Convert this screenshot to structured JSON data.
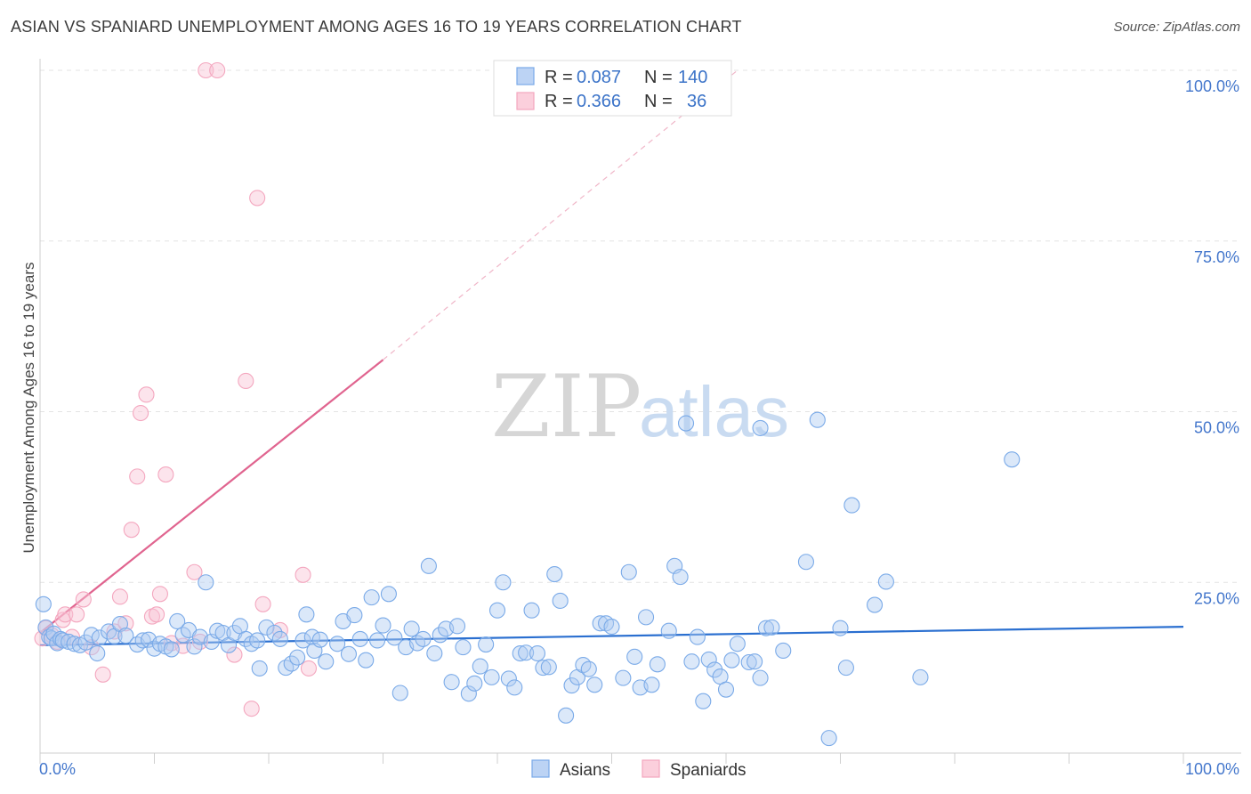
{
  "header": {
    "title": "ASIAN VS SPANIARD UNEMPLOYMENT AMONG AGES 16 TO 19 YEARS CORRELATION CHART",
    "source": "Source: ZipAtlas.com"
  },
  "watermark": {
    "zip": "ZIP",
    "atlas": "atlas"
  },
  "legend_top": [
    {
      "r_label": "R =",
      "r_value": "0.087",
      "n_label": "N =",
      "n_value": "140"
    },
    {
      "r_label": "R =",
      "r_value": "0.366",
      "n_label": "N =",
      "n_value": "36"
    }
  ],
  "legend_bottom": [
    "Asians",
    "Spaniards"
  ],
  "chart_data": {
    "type": "scatter",
    "title": "ASIAN VS SPANIARD UNEMPLOYMENT AMONG AGES 16 TO 19 YEARS CORRELATION CHART",
    "xlabel": "",
    "ylabel": "Unemployment Among Ages 16 to 19 years",
    "xlim": [
      0,
      100
    ],
    "ylim": [
      0,
      100
    ],
    "x_tick_labels": [
      "0.0%",
      "100.0%"
    ],
    "y_tick_labels": [
      "25.0%",
      "50.0%",
      "75.0%",
      "100.0%"
    ],
    "y_ticks": [
      25,
      50,
      75,
      100
    ],
    "grid": true,
    "legend_position": "top-center",
    "colors": {
      "asians": "#7aaae8",
      "spaniards": "#f4a7bf",
      "asians_line": "#2a6fd0",
      "spaniards_line": "#e0648f"
    },
    "series": [
      {
        "name": "Asians",
        "r": 0.087,
        "n": 140,
        "trend": {
          "x": [
            0,
            100
          ],
          "y": [
            15.8,
            18.5
          ]
        },
        "points": [
          [
            0.3,
            21.8
          ],
          [
            0.5,
            18.4
          ],
          [
            0.8,
            17.0
          ],
          [
            1.0,
            16.8
          ],
          [
            1.2,
            17.5
          ],
          [
            1.5,
            16.1
          ],
          [
            1.8,
            16.7
          ],
          [
            2.0,
            16.5
          ],
          [
            2.5,
            16.3
          ],
          [
            3.0,
            16.0
          ],
          [
            3.5,
            15.8
          ],
          [
            4.0,
            16.2
          ],
          [
            4.5,
            17.3
          ],
          [
            5.0,
            14.6
          ],
          [
            5.2,
            16.9
          ],
          [
            6.0,
            17.8
          ],
          [
            6.5,
            17.1
          ],
          [
            7.0,
            18.9
          ],
          [
            7.5,
            17.2
          ],
          [
            8.5,
            15.9
          ],
          [
            9.0,
            16.5
          ],
          [
            9.5,
            16.6
          ],
          [
            10.0,
            15.3
          ],
          [
            10.5,
            16.0
          ],
          [
            11.0,
            15.6
          ],
          [
            11.5,
            15.2
          ],
          [
            12.0,
            19.3
          ],
          [
            12.5,
            17.3
          ],
          [
            13.0,
            18.0
          ],
          [
            13.5,
            15.6
          ],
          [
            14.0,
            17.0
          ],
          [
            14.5,
            25.0
          ],
          [
            15.0,
            16.3
          ],
          [
            15.5,
            17.9
          ],
          [
            16.0,
            17.6
          ],
          [
            16.5,
            15.8
          ],
          [
            17.0,
            17.6
          ],
          [
            17.5,
            18.6
          ],
          [
            18.0,
            16.7
          ],
          [
            18.5,
            16.0
          ],
          [
            19.0,
            16.5
          ],
          [
            19.2,
            12.4
          ],
          [
            19.8,
            18.4
          ],
          [
            20.5,
            17.6
          ],
          [
            21.0,
            16.7
          ],
          [
            21.5,
            12.5
          ],
          [
            22.0,
            13.1
          ],
          [
            22.5,
            14.0
          ],
          [
            23.0,
            16.5
          ],
          [
            23.3,
            20.3
          ],
          [
            23.8,
            17.0
          ],
          [
            24.0,
            15.0
          ],
          [
            24.5,
            16.6
          ],
          [
            25.0,
            13.4
          ],
          [
            26.0,
            16.0
          ],
          [
            26.5,
            19.3
          ],
          [
            27.0,
            14.5
          ],
          [
            27.5,
            20.2
          ],
          [
            28.0,
            16.7
          ],
          [
            28.5,
            13.6
          ],
          [
            29.0,
            22.8
          ],
          [
            29.5,
            16.5
          ],
          [
            30.0,
            18.7
          ],
          [
            30.5,
            23.3
          ],
          [
            31.0,
            16.9
          ],
          [
            31.5,
            8.8
          ],
          [
            32.0,
            15.5
          ],
          [
            32.5,
            18.2
          ],
          [
            33.0,
            16.1
          ],
          [
            33.5,
            16.7
          ],
          [
            34.0,
            27.4
          ],
          [
            34.5,
            14.6
          ],
          [
            35.0,
            17.3
          ],
          [
            35.5,
            18.2
          ],
          [
            36.0,
            10.4
          ],
          [
            36.5,
            18.6
          ],
          [
            37.0,
            15.5
          ],
          [
            37.5,
            8.7
          ],
          [
            38.0,
            10.2
          ],
          [
            38.5,
            12.7
          ],
          [
            39.0,
            15.9
          ],
          [
            39.5,
            11.1
          ],
          [
            40.0,
            20.9
          ],
          [
            40.5,
            25.0
          ],
          [
            41.0,
            10.9
          ],
          [
            41.5,
            9.6
          ],
          [
            42.0,
            14.6
          ],
          [
            42.5,
            14.7
          ],
          [
            43.0,
            20.9
          ],
          [
            43.5,
            14.6
          ],
          [
            44.0,
            12.5
          ],
          [
            44.5,
            12.6
          ],
          [
            45.0,
            26.2
          ],
          [
            45.5,
            22.3
          ],
          [
            46.0,
            5.5
          ],
          [
            46.5,
            9.9
          ],
          [
            47.0,
            11.1
          ],
          [
            47.5,
            12.9
          ],
          [
            48.0,
            12.3
          ],
          [
            48.5,
            10.0
          ],
          [
            49.0,
            19.0
          ],
          [
            49.5,
            19.0
          ],
          [
            50.0,
            18.5
          ],
          [
            51.0,
            11.0
          ],
          [
            51.5,
            26.5
          ],
          [
            52.0,
            14.1
          ],
          [
            52.5,
            9.6
          ],
          [
            53.0,
            19.9
          ],
          [
            53.5,
            10.0
          ],
          [
            54.0,
            13.0
          ],
          [
            55.0,
            17.9
          ],
          [
            55.5,
            27.4
          ],
          [
            56.0,
            25.8
          ],
          [
            57.0,
            13.4
          ],
          [
            57.5,
            17.0
          ],
          [
            58.0,
            7.6
          ],
          [
            58.5,
            13.7
          ],
          [
            59.0,
            12.2
          ],
          [
            59.5,
            11.2
          ],
          [
            60.0,
            9.3
          ],
          [
            60.5,
            13.6
          ],
          [
            61.0,
            16.0
          ],
          [
            62.0,
            13.3
          ],
          [
            62.5,
            13.4
          ],
          [
            63.0,
            11.0
          ],
          [
            63.5,
            18.3
          ],
          [
            64.0,
            18.4
          ],
          [
            65.0,
            15.0
          ],
          [
            67.0,
            28.0
          ],
          [
            68.0,
            48.8
          ],
          [
            69.0,
            2.2
          ],
          [
            70.0,
            18.3
          ],
          [
            70.5,
            12.5
          ],
          [
            71.0,
            36.3
          ],
          [
            73.0,
            21.7
          ],
          [
            74.0,
            25.1
          ],
          [
            77.0,
            11.1
          ],
          [
            85.0,
            43.0
          ],
          [
            56.5,
            48.3
          ],
          [
            63.0,
            47.6
          ]
        ]
      },
      {
        "name": "Spaniards",
        "r": 0.366,
        "n": 36,
        "trend": {
          "x": [
            0,
            30
          ],
          "y": [
            17.6,
            57.6
          ]
        },
        "trend_dashed": {
          "x": [
            30,
            61
          ],
          "y": [
            57.6,
            100
          ]
        },
        "points": [
          [
            0.2,
            16.8
          ],
          [
            0.5,
            18.3
          ],
          [
            1.0,
            17.3
          ],
          [
            1.5,
            16.3
          ],
          [
            2.0,
            19.5
          ],
          [
            2.2,
            20.3
          ],
          [
            2.8,
            17.0
          ],
          [
            3.2,
            20.3
          ],
          [
            3.8,
            22.5
          ],
          [
            4.5,
            15.5
          ],
          [
            5.5,
            11.5
          ],
          [
            6.5,
            17.8
          ],
          [
            7.0,
            22.9
          ],
          [
            7.5,
            19.0
          ],
          [
            8.0,
            32.7
          ],
          [
            8.5,
            40.5
          ],
          [
            8.8,
            49.8
          ],
          [
            9.3,
            52.5
          ],
          [
            9.8,
            20.0
          ],
          [
            10.2,
            20.3
          ],
          [
            10.5,
            23.3
          ],
          [
            11.0,
            40.8
          ],
          [
            11.5,
            16.1
          ],
          [
            12.5,
            15.7
          ],
          [
            13.5,
            26.5
          ],
          [
            14.0,
            16.3
          ],
          [
            14.5,
            100.0
          ],
          [
            15.5,
            100.0
          ],
          [
            17.0,
            14.4
          ],
          [
            18.0,
            54.5
          ],
          [
            18.5,
            6.5
          ],
          [
            19.0,
            81.3
          ],
          [
            19.5,
            21.8
          ],
          [
            21.0,
            18.0
          ],
          [
            23.0,
            26.1
          ],
          [
            23.5,
            12.4
          ]
        ]
      }
    ]
  }
}
